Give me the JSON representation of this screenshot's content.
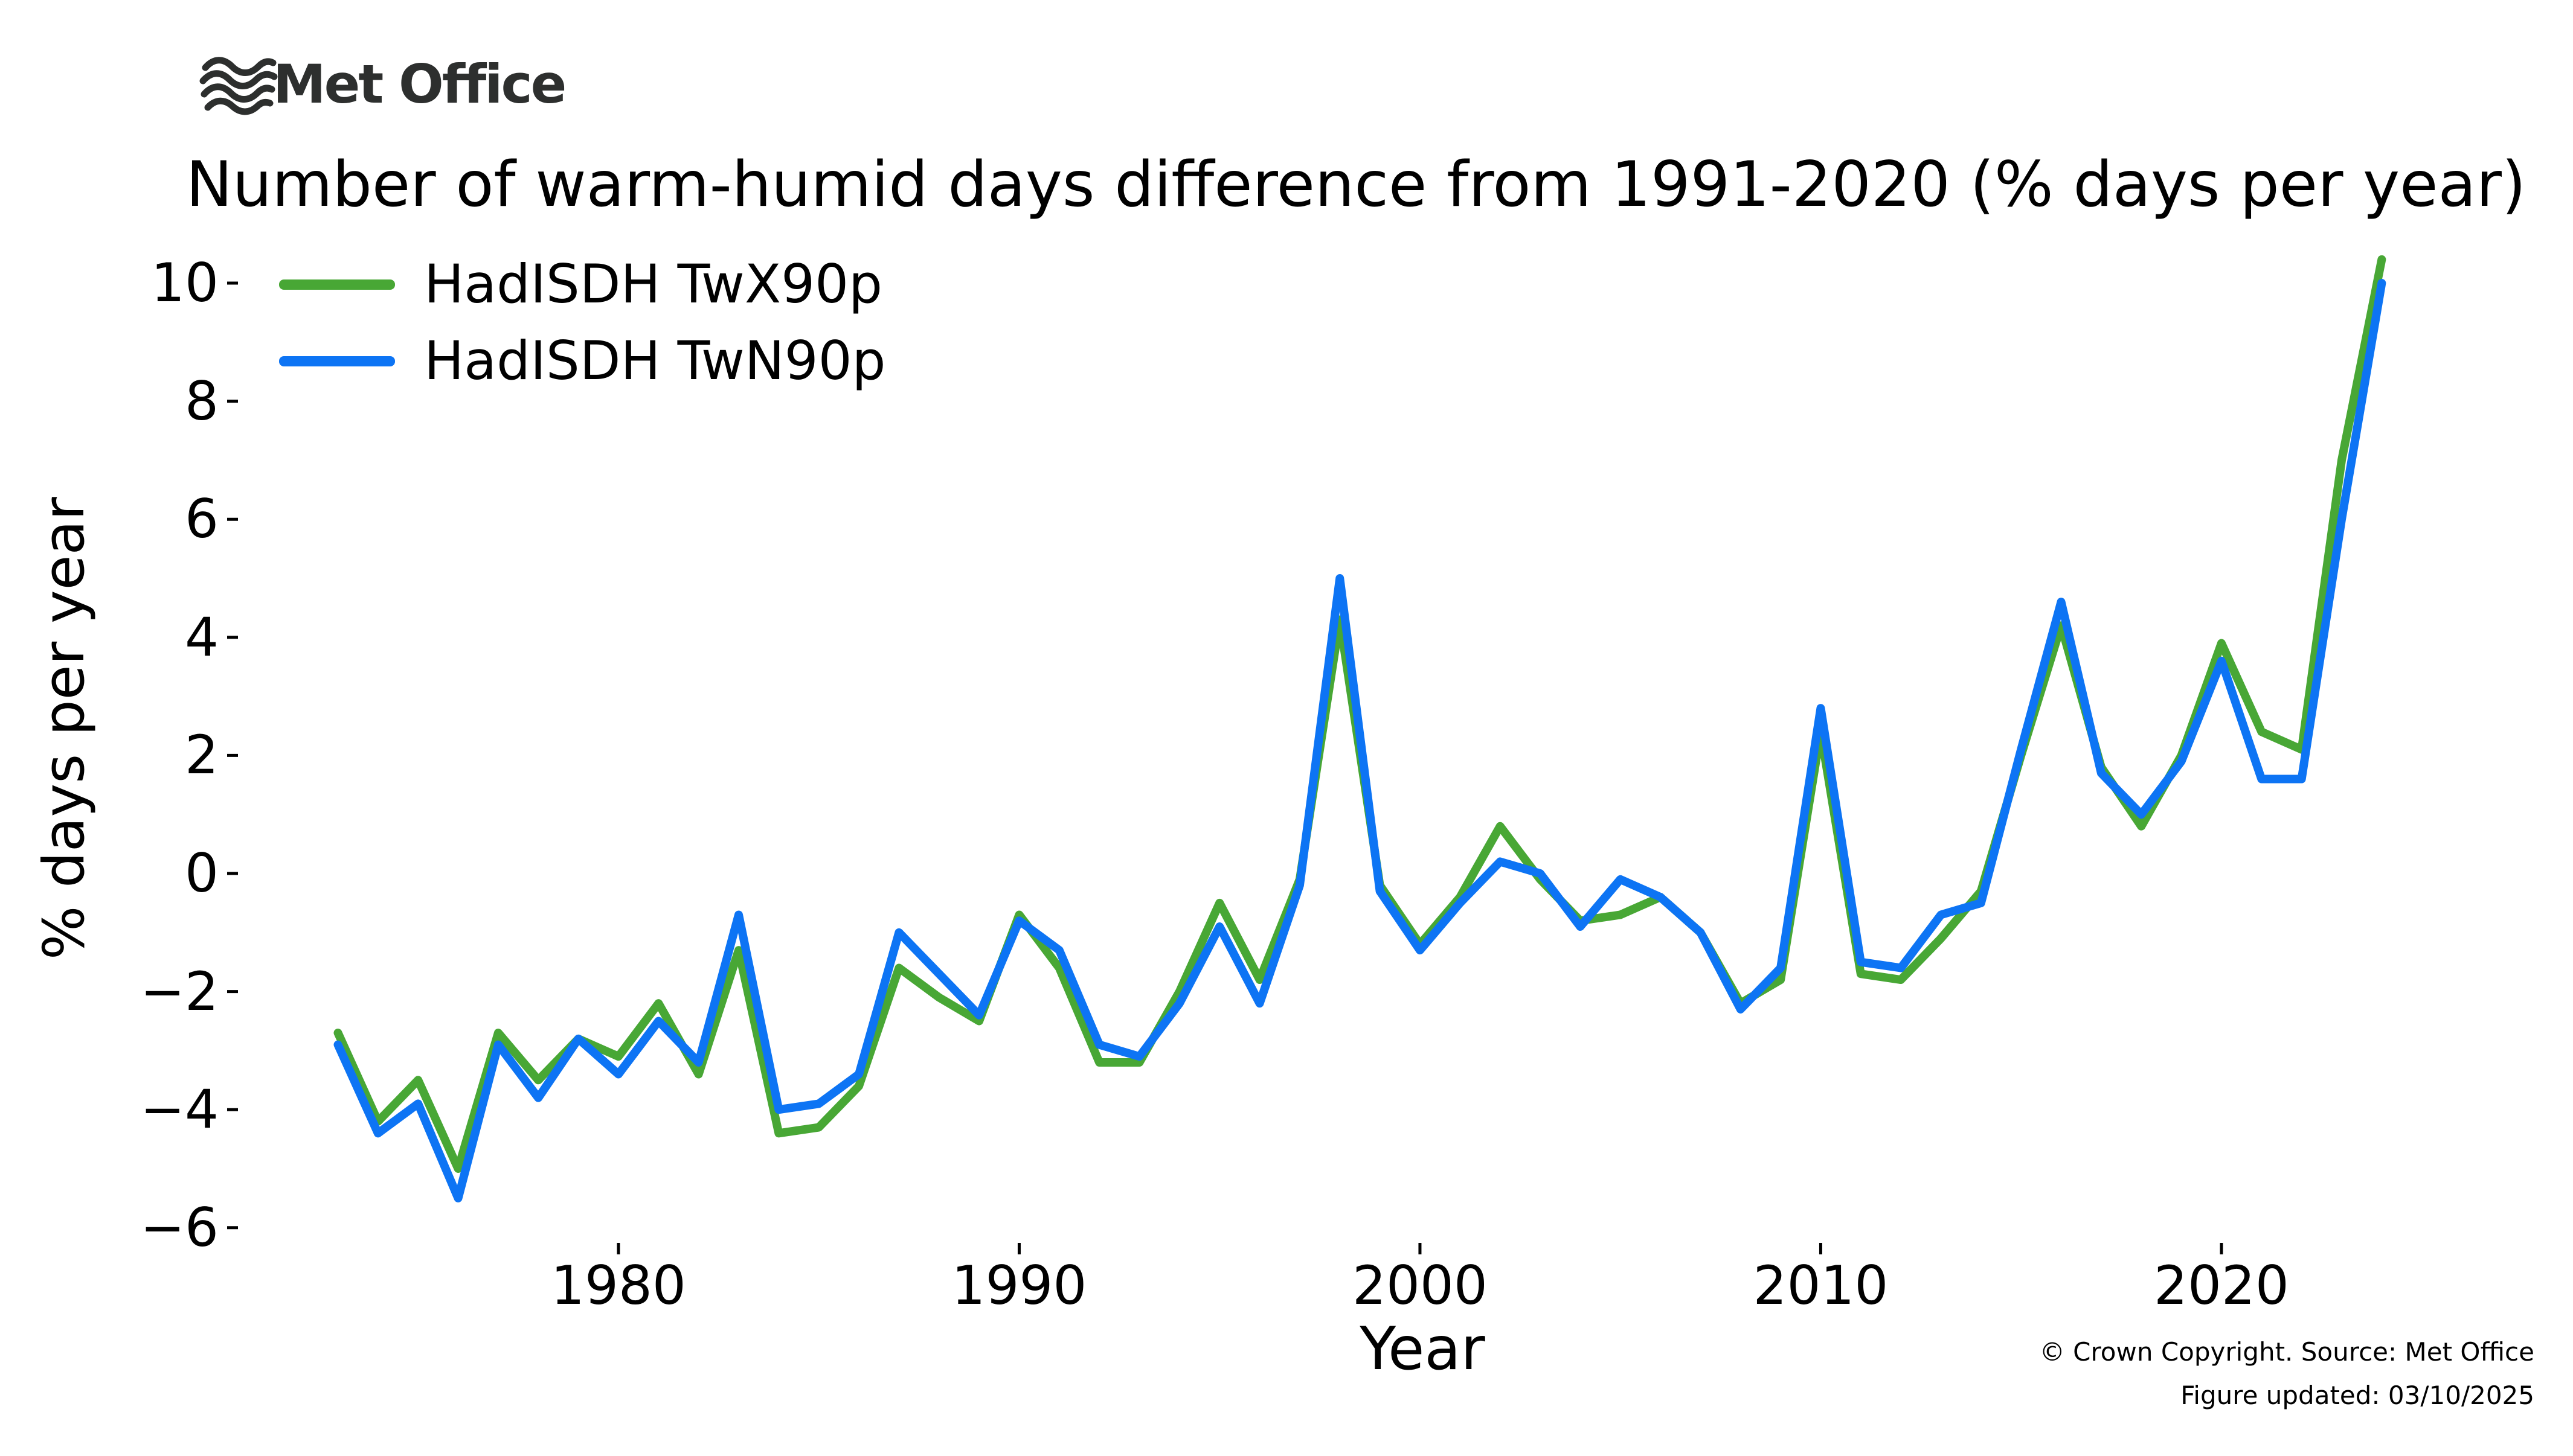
{
  "logo": {
    "text": "Met Office"
  },
  "title": "Number of warm-humid days difference from 1991-2020 (% days per year)",
  "legend": {
    "items": [
      {
        "label": "HadISDH TwX90p",
        "color": "#48a735"
      },
      {
        "label": "HadISDH TwN90p",
        "color": "#0d74f4"
      }
    ]
  },
  "footer": {
    "line1": "© Crown Copyright. Source: Met Office",
    "line2": "Figure updated: 03/10/2025"
  },
  "chart_data": {
    "type": "line",
    "title": "Number of warm-humid days difference from 1991-2020 (% days per year)",
    "xlabel": "Year",
    "ylabel": "% days per year",
    "legend_position": "upper-left",
    "grid": false,
    "xticks": [
      1980,
      1990,
      2000,
      2010,
      2020
    ],
    "yticks": [
      10,
      8,
      6,
      4,
      2,
      0,
      -2,
      -4,
      -6
    ],
    "ytick_labels": [
      "10",
      "8",
      "6",
      "4",
      "2",
      "0",
      "−2",
      "−4",
      "−6"
    ],
    "xlim": [
      1970.6,
      2026.8
    ],
    "ylim": [
      -6.6,
      10.6
    ],
    "x": [
      1973,
      1974,
      1975,
      1976,
      1977,
      1978,
      1979,
      1980,
      1981,
      1982,
      1983,
      1984,
      1985,
      1986,
      1987,
      1988,
      1989,
      1990,
      1991,
      1992,
      1993,
      1994,
      1995,
      1996,
      1997,
      1998,
      1999,
      2000,
      2001,
      2002,
      2003,
      2004,
      2005,
      2006,
      2007,
      2008,
      2009,
      2010,
      2011,
      2012,
      2013,
      2014,
      2015,
      2016,
      2017,
      2018,
      2019,
      2020,
      2021,
      2022,
      2023,
      2024
    ],
    "series": [
      {
        "name": "HadISDH TwX90p",
        "color": "#48a735",
        "values": [
          -2.7,
          -4.2,
          -3.5,
          -5.0,
          -2.7,
          -3.5,
          -2.8,
          -3.1,
          -2.2,
          -3.4,
          -1.3,
          -4.4,
          -4.3,
          -3.6,
          -1.6,
          -2.1,
          -2.5,
          -0.7,
          -1.6,
          -3.2,
          -3.2,
          -2.0,
          -0.5,
          -1.8,
          -0.1,
          4.3,
          -0.2,
          -1.2,
          -0.4,
          0.8,
          -0.1,
          -0.8,
          -0.7,
          -0.4,
          -1.0,
          -2.2,
          -1.8,
          2.4,
          -1.7,
          -1.8,
          -1.1,
          -0.3,
          2.0,
          4.2,
          1.8,
          0.8,
          2.0,
          3.9,
          2.4,
          2.1,
          7.0,
          10.4
        ]
      },
      {
        "name": "HadISDH TwN90p",
        "color": "#0d74f4",
        "values": [
          -2.9,
          -4.4,
          -3.9,
          -5.5,
          -2.9,
          -3.8,
          -2.8,
          -3.4,
          -2.5,
          -3.2,
          -0.7,
          -4.0,
          -3.9,
          -3.4,
          -1.0,
          -1.7,
          -2.4,
          -0.8,
          -1.3,
          -2.9,
          -3.1,
          -2.2,
          -0.9,
          -2.2,
          -0.2,
          5.0,
          -0.3,
          -1.3,
          -0.5,
          0.2,
          0.0,
          -0.9,
          -0.1,
          -0.4,
          -1.0,
          -2.3,
          -1.6,
          2.8,
          -1.5,
          -1.6,
          -0.7,
          -0.5,
          2.1,
          4.6,
          1.7,
          1.0,
          1.9,
          3.6,
          1.6,
          1.6,
          6.0,
          10.0
        ]
      }
    ]
  }
}
